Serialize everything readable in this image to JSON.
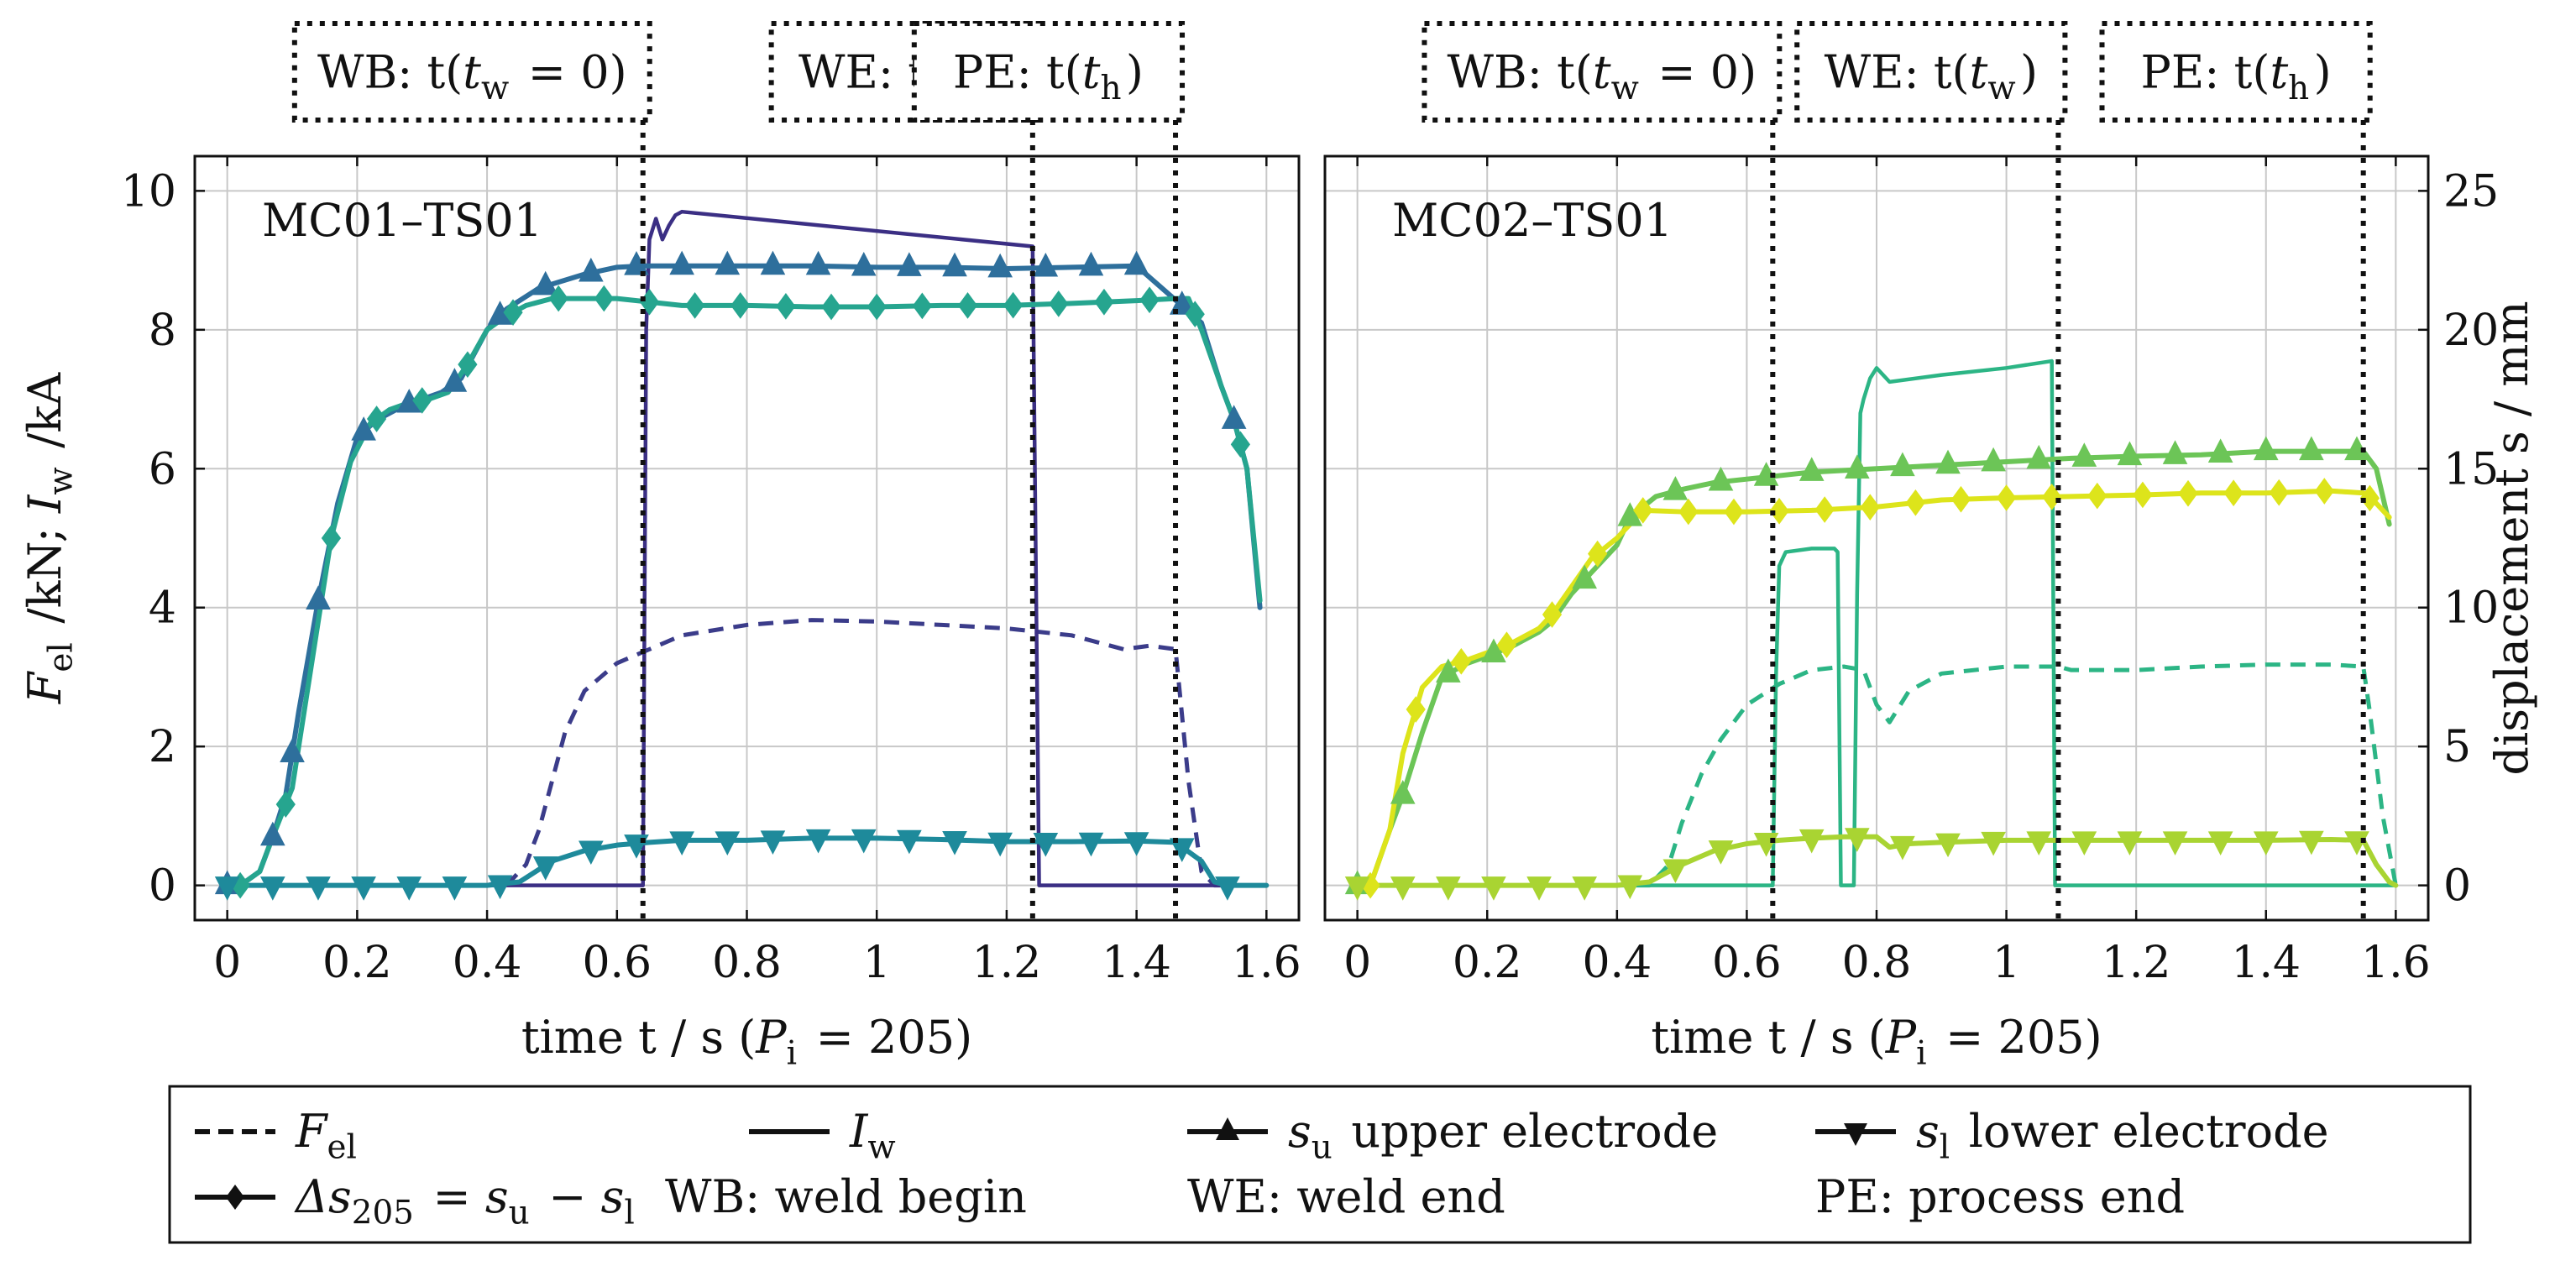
{
  "figure_label": "Weld process measurements: electrode force, weld current and electrode displacements",
  "colors": {
    "mc01_force": "#3b3c8a",
    "mc01_current": "#3b2f84",
    "mc01_su": "#2e6f9c",
    "mc01_delta": "#26a58f",
    "mc01_sl": "#1e8a9b",
    "mc02_force": "#2cb585",
    "mc02_current": "#2cb585",
    "mc02_su": "#6cc557",
    "mc02_delta": "#dde41b",
    "mc02_sl": "#a9d432",
    "grid": "#c8c8c8",
    "marker_line": "#111111"
  },
  "legend": {
    "items": [
      {
        "key": "F",
        "sub": "el",
        "suffix": "",
        "style": "dashed"
      },
      {
        "key": "I",
        "sub": "w",
        "suffix": "",
        "style": "solid"
      },
      {
        "key": "s",
        "sub": "u",
        "suffix": " upper electrode",
        "style": "triangle-up"
      },
      {
        "key": "s",
        "sub": "l",
        "suffix": " lower electrode",
        "style": "triangle-down"
      },
      {
        "key": "Δs",
        "sub": "205",
        "suffix": " = s_u − s_l",
        "style": "diamond"
      }
    ],
    "notes": [
      "WB: weld begin",
      "WE: weld end",
      "PE: process end"
    ]
  },
  "chart_data": [
    {
      "type": "line",
      "title": "MC01–TS01",
      "xlabel": "time t / s (P_i = 205)",
      "ylabel_left": "F_el /kN; I_w /kA",
      "ylabel_right": "",
      "xlim": [
        -0.05,
        1.65
      ],
      "ylim_left": [
        -0.5,
        10.5
      ],
      "ylim_right": [
        -1.25,
        26.25
      ],
      "xticks": [
        0,
        0.2,
        0.4,
        0.6,
        0.8,
        1,
        1.2,
        1.4,
        1.6
      ],
      "xtick_labels": [
        "0",
        "0.2",
        "0.4",
        "0.6",
        "0.8",
        "1",
        "1.2",
        "1.4",
        "1.6"
      ],
      "yticks_left": [
        0,
        2,
        4,
        6,
        8,
        10
      ],
      "yticks_right": [],
      "grid": true,
      "events": [
        {
          "label": "WB",
          "expr": "t(t_w = 0)",
          "t": 0.64
        },
        {
          "label": "WE",
          "expr": "t(t_w)",
          "t": 1.24
        },
        {
          "label": "PE",
          "expr": "t(t_h)",
          "t": 1.46
        }
      ],
      "series": [
        {
          "name": "F_el",
          "axis": "left",
          "style": "dashed",
          "color_key": "mc01_force",
          "x": [
            0,
            0.4,
            0.44,
            0.46,
            0.48,
            0.5,
            0.52,
            0.55,
            0.6,
            0.65,
            0.7,
            0.8,
            0.9,
            1.0,
            1.1,
            1.2,
            1.3,
            1.38,
            1.42,
            1.46,
            1.48,
            1.5,
            1.52,
            1.6
          ],
          "y": [
            0,
            0,
            0.1,
            0.3,
            0.8,
            1.5,
            2.2,
            2.8,
            3.2,
            3.4,
            3.6,
            3.75,
            3.82,
            3.8,
            3.75,
            3.7,
            3.6,
            3.4,
            3.45,
            3.4,
            1.5,
            0.2,
            0,
            0
          ]
        },
        {
          "name": "I_w",
          "axis": "left",
          "style": "solid",
          "color_key": "mc01_current",
          "x": [
            0,
            0.64,
            0.645,
            0.65,
            0.66,
            0.67,
            0.68,
            0.69,
            0.7,
            1.24,
            1.25,
            1.6
          ],
          "y": [
            0,
            0,
            8.0,
            9.3,
            9.6,
            9.3,
            9.5,
            9.65,
            9.7,
            9.2,
            0,
            0
          ]
        },
        {
          "name": "s_u",
          "axis": "left",
          "style": "triangle-up",
          "color_key": "mc01_su",
          "x": [
            0,
            0.02,
            0.05,
            0.07,
            0.09,
            0.11,
            0.14,
            0.17,
            0.2,
            0.23,
            0.27,
            0.3,
            0.33,
            0.36,
            0.4,
            0.43,
            0.48,
            0.55,
            0.6,
            0.64,
            0.7,
            0.8,
            0.9,
            1.0,
            1.1,
            1.2,
            1.3,
            1.4,
            1.5,
            1.53,
            1.55,
            1.57,
            1.59
          ],
          "y": [
            0,
            0,
            0.2,
            0.7,
            1.3,
            2.5,
            4.1,
            5.5,
            6.45,
            6.7,
            6.9,
            7.0,
            7.1,
            7.3,
            8.0,
            8.3,
            8.6,
            8.8,
            8.9,
            8.92,
            8.92,
            8.92,
            8.92,
            8.9,
            8.9,
            8.88,
            8.9,
            8.92,
            8.1,
            7.2,
            6.7,
            6.0,
            4.0
          ]
        },
        {
          "name": "Δs_205",
          "axis": "left",
          "style": "diamond",
          "color_key": "mc01_delta",
          "x": [
            0,
            0.02,
            0.05,
            0.07,
            0.1,
            0.13,
            0.16,
            0.19,
            0.22,
            0.25,
            0.28,
            0.31,
            0.34,
            0.37,
            0.4,
            0.43,
            0.46,
            0.5,
            0.55,
            0.6,
            0.65,
            0.7,
            0.8,
            0.9,
            1.0,
            1.1,
            1.2,
            1.3,
            1.4,
            1.46,
            1.48,
            1.5,
            1.53,
            1.55,
            1.57,
            1.59
          ],
          "y": [
            0,
            0,
            0.2,
            0.7,
            1.4,
            3.2,
            5.0,
            6.1,
            6.65,
            6.85,
            6.95,
            7.0,
            7.1,
            7.5,
            8.0,
            8.2,
            8.35,
            8.45,
            8.45,
            8.45,
            8.4,
            8.35,
            8.35,
            8.33,
            8.33,
            8.35,
            8.35,
            8.38,
            8.42,
            8.45,
            8.45,
            8.0,
            7.2,
            6.7,
            6.0,
            4.1
          ]
        },
        {
          "name": "s_l",
          "axis": "left",
          "style": "triangle-down",
          "color_key": "mc01_sl",
          "x": [
            0,
            0.02,
            0.1,
            0.2,
            0.3,
            0.4,
            0.45,
            0.5,
            0.55,
            0.6,
            0.65,
            0.7,
            0.8,
            0.9,
            1.0,
            1.1,
            1.2,
            1.3,
            1.4,
            1.46,
            1.5,
            1.52,
            1.54,
            1.6
          ],
          "y": [
            0,
            0,
            0,
            0,
            0,
            0,
            0.05,
            0.35,
            0.5,
            0.58,
            0.62,
            0.65,
            0.65,
            0.68,
            0.68,
            0.66,
            0.63,
            0.63,
            0.64,
            0.62,
            0.35,
            0.05,
            0,
            0
          ]
        }
      ],
      "markers": {
        "s_u": [
          0,
          0.07,
          0.1,
          0.14,
          0.21,
          0.28,
          0.35,
          0.42,
          0.49,
          0.56,
          0.63,
          0.7,
          0.77,
          0.84,
          0.91,
          0.98,
          1.05,
          1.12,
          1.19,
          1.26,
          1.33,
          1.4,
          1.47,
          1.55
        ],
        "Δs_205": [
          0.02,
          0.09,
          0.16,
          0.23,
          0.3,
          0.37,
          0.44,
          0.51,
          0.58,
          0.65,
          0.72,
          0.79,
          0.86,
          0.93,
          1.0,
          1.07,
          1.14,
          1.21,
          1.28,
          1.35,
          1.42,
          1.49,
          1.56
        ],
        "s_l": [
          0,
          0.07,
          0.14,
          0.21,
          0.28,
          0.35,
          0.42,
          0.49,
          0.56,
          0.63,
          0.7,
          0.77,
          0.84,
          0.91,
          0.98,
          1.05,
          1.12,
          1.19,
          1.26,
          1.33,
          1.4,
          1.47,
          1.54
        ]
      }
    },
    {
      "type": "line",
      "title": "MC02–TS01",
      "xlabel": "time t / s (P_i = 205)",
      "ylabel_left": "",
      "ylabel_right": "displacement s / mm",
      "xlim": [
        -0.05,
        1.65
      ],
      "ylim_left": [
        -0.5,
        10.5
      ],
      "ylim_right": [
        -1.25,
        26.25
      ],
      "xticks": [
        0,
        0.2,
        0.4,
        0.6,
        0.8,
        1,
        1.2,
        1.4,
        1.6
      ],
      "xtick_labels": [
        "0",
        "0.2",
        "0.4",
        "0.6",
        "0.8",
        "1",
        "1.2",
        "1.4",
        "1.6"
      ],
      "yticks_left": [],
      "yticks_right": [
        0,
        5,
        10,
        15,
        20,
        25
      ],
      "grid": true,
      "events": [
        {
          "label": "WB",
          "expr": "t(t_w = 0)",
          "t": 0.64
        },
        {
          "label": "WE",
          "expr": "t(t_w)",
          "t": 1.08
        },
        {
          "label": "PE",
          "expr": "t(t_h)",
          "t": 1.55
        }
      ],
      "series": [
        {
          "name": "F_el",
          "axis": "left",
          "style": "dashed",
          "color_key": "mc02_force",
          "x": [
            0,
            0.45,
            0.48,
            0.5,
            0.53,
            0.56,
            0.6,
            0.65,
            0.7,
            0.75,
            0.78,
            0.8,
            0.82,
            0.85,
            0.9,
            1.0,
            1.08,
            1.1,
            1.2,
            1.3,
            1.4,
            1.5,
            1.55,
            1.56,
            1.58,
            1.6
          ],
          "y": [
            0,
            0,
            0.3,
            0.9,
            1.6,
            2.1,
            2.6,
            2.9,
            3.1,
            3.15,
            3.1,
            2.6,
            2.35,
            2.8,
            3.05,
            3.15,
            3.15,
            3.1,
            3.1,
            3.15,
            3.18,
            3.18,
            3.15,
            2.5,
            1.0,
            0
          ]
        },
        {
          "name": "I_w",
          "axis": "left",
          "style": "solid",
          "color_key": "mc02_current",
          "x": [
            0,
            0.64,
            0.645,
            0.65,
            0.66,
            0.7,
            0.735,
            0.74,
            0.745,
            0.765,
            0.77,
            0.775,
            0.78,
            0.79,
            0.8,
            0.82,
            0.9,
            1.0,
            1.07,
            1.075,
            1.6
          ],
          "y": [
            0,
            0,
            3.0,
            4.6,
            4.8,
            4.85,
            4.85,
            4.8,
            0,
            0,
            4.2,
            6.8,
            7.0,
            7.3,
            7.45,
            7.25,
            7.35,
            7.45,
            7.55,
            0,
            0
          ]
        },
        {
          "name": "s_u",
          "axis": "left",
          "style": "triangle-up",
          "color_key": "mc02_su",
          "x": [
            0,
            0.02,
            0.05,
            0.07,
            0.1,
            0.13,
            0.17,
            0.2,
            0.24,
            0.28,
            0.3,
            0.33,
            0.36,
            0.4,
            0.42,
            0.46,
            0.5,
            0.55,
            0.6,
            0.65,
            0.7,
            0.8,
            0.9,
            1.0,
            1.1,
            1.2,
            1.3,
            1.4,
            1.5,
            1.55,
            1.57,
            1.59
          ],
          "y": [
            0,
            0,
            0.8,
            1.3,
            2.2,
            3.0,
            3.2,
            3.3,
            3.45,
            3.65,
            3.8,
            4.2,
            4.5,
            4.9,
            5.3,
            5.6,
            5.7,
            5.8,
            5.85,
            5.9,
            5.95,
            6.0,
            6.05,
            6.1,
            6.15,
            6.18,
            6.2,
            6.25,
            6.25,
            6.25,
            6.0,
            5.2
          ]
        },
        {
          "name": "Δs_205",
          "axis": "left",
          "style": "diamond",
          "color_key": "mc02_delta",
          "x": [
            0,
            0.02,
            0.05,
            0.07,
            0.1,
            0.13,
            0.17,
            0.2,
            0.24,
            0.28,
            0.3,
            0.33,
            0.36,
            0.4,
            0.44,
            0.5,
            0.6,
            0.7,
            0.8,
            0.9,
            1.0,
            1.1,
            1.2,
            1.3,
            1.4,
            1.5,
            1.55,
            1.57,
            1.59
          ],
          "y": [
            0,
            0,
            0.8,
            1.9,
            2.85,
            3.15,
            3.25,
            3.35,
            3.5,
            3.7,
            3.9,
            4.3,
            4.7,
            5.0,
            5.4,
            5.38,
            5.38,
            5.4,
            5.45,
            5.55,
            5.58,
            5.6,
            5.62,
            5.65,
            5.65,
            5.68,
            5.65,
            5.5,
            5.3
          ]
        },
        {
          "name": "s_l",
          "axis": "left",
          "style": "triangle-down",
          "color_key": "mc02_sl",
          "x": [
            0,
            0.02,
            0.1,
            0.2,
            0.3,
            0.4,
            0.45,
            0.5,
            0.55,
            0.6,
            0.65,
            0.7,
            0.75,
            0.8,
            0.82,
            0.85,
            0.9,
            1.0,
            1.1,
            1.2,
            1.3,
            1.4,
            1.5,
            1.55,
            1.57,
            1.59,
            1.6
          ],
          "y": [
            0,
            0,
            0,
            0,
            0,
            0,
            0.05,
            0.3,
            0.5,
            0.6,
            0.65,
            0.68,
            0.7,
            0.7,
            0.55,
            0.6,
            0.62,
            0.65,
            0.65,
            0.65,
            0.65,
            0.65,
            0.66,
            0.65,
            0.3,
            0.05,
            0
          ]
        }
      ],
      "markers": {
        "s_u": [
          0,
          0.07,
          0.14,
          0.21,
          0.35,
          0.42,
          0.49,
          0.56,
          0.63,
          0.7,
          0.77,
          0.84,
          0.91,
          0.98,
          1.05,
          1.12,
          1.19,
          1.26,
          1.33,
          1.4,
          1.47,
          1.54
        ],
        "Δs_205": [
          0.02,
          0.09,
          0.16,
          0.23,
          0.3,
          0.37,
          0.44,
          0.51,
          0.58,
          0.65,
          0.72,
          0.79,
          0.86,
          0.93,
          1.0,
          1.07,
          1.14,
          1.21,
          1.28,
          1.35,
          1.42,
          1.49,
          1.56
        ],
        "s_l": [
          0,
          0.07,
          0.14,
          0.21,
          0.28,
          0.35,
          0.42,
          0.49,
          0.56,
          0.63,
          0.7,
          0.77,
          0.84,
          0.91,
          0.98,
          1.05,
          1.12,
          1.19,
          1.26,
          1.33,
          1.4,
          1.47,
          1.54
        ]
      }
    }
  ]
}
